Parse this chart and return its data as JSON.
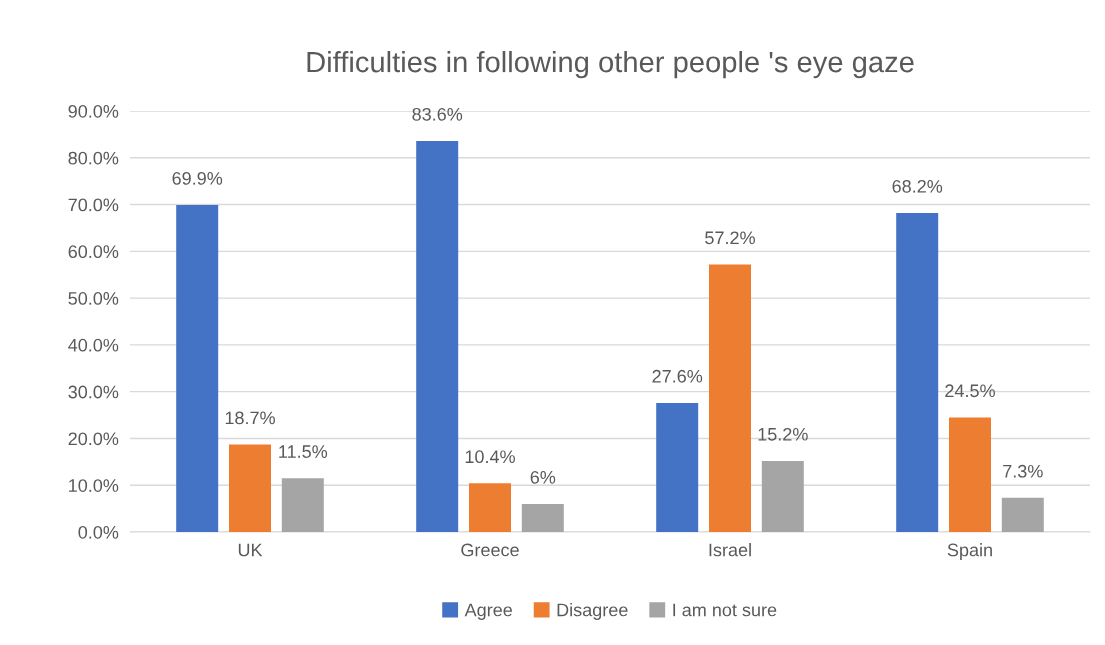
{
  "chart_data": {
    "type": "bar",
    "title": "Difficulties in following other people 's eye gaze",
    "categories": [
      "UK",
      "Greece",
      "Israel",
      "Spain"
    ],
    "series": [
      {
        "name": "Agree",
        "color": "#4472c4",
        "values": [
          69.9,
          83.6,
          27.6,
          68.2
        ],
        "value_labels": [
          "69.9%",
          "83.6%",
          "27.6%",
          "68.2%"
        ]
      },
      {
        "name": "Disagree",
        "color": "#ed7d31",
        "values": [
          18.7,
          10.4,
          57.2,
          24.5
        ],
        "value_labels": [
          "18.7%",
          "10.4%",
          "57.2%",
          "24.5%"
        ]
      },
      {
        "name": "I am not sure",
        "color": "#a5a5a5",
        "values": [
          11.5,
          6,
          15.2,
          7.3
        ],
        "value_labels": [
          "11.5%",
          "6%",
          "15.2%",
          "7.3%"
        ]
      }
    ],
    "ylim": [
      0,
      90
    ],
    "yticks": [
      {
        "value": 0,
        "label": "0.0%"
      },
      {
        "value": 10,
        "label": "10.0%"
      },
      {
        "value": 20,
        "label": "20.0%"
      },
      {
        "value": 30,
        "label": "30.0%"
      },
      {
        "value": 40,
        "label": "40.0%"
      },
      {
        "value": 50,
        "label": "50.0%"
      },
      {
        "value": 60,
        "label": "60.0%"
      },
      {
        "value": 70,
        "label": "70.0%"
      },
      {
        "value": 80,
        "label": "80.0%"
      },
      {
        "value": 90,
        "label": "90.0%"
      }
    ],
    "grid": "y",
    "legend": "bottom"
  }
}
